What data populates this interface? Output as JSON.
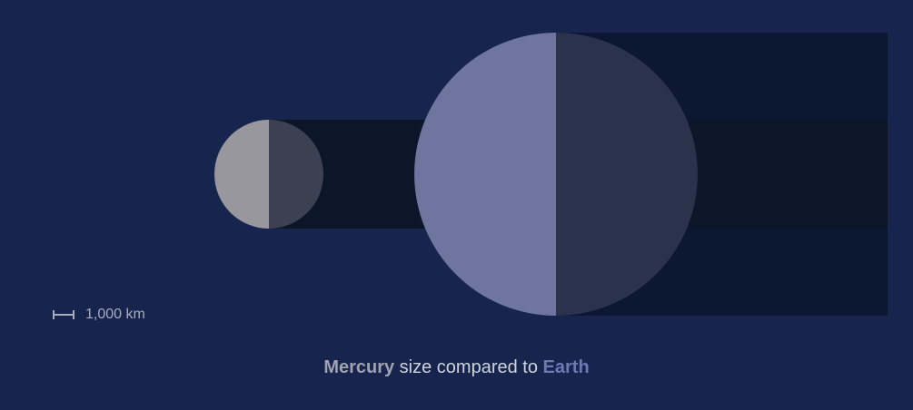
{
  "diagram": {
    "colors": {
      "background": "#17244d",
      "mercury_light": "#98979d",
      "mercury_dark": "#3b4150",
      "earth_light": "#6e759f",
      "earth_dark": "#2a334b",
      "shadow_dark": "#0c1730",
      "shadow_darker": "#0b1628",
      "caption_text": "#cfd3de"
    }
  },
  "scale": {
    "label": "1,000 km"
  },
  "caption": {
    "mercury": "Mercury",
    "middle": " size compared to ",
    "earth": "Earth"
  }
}
